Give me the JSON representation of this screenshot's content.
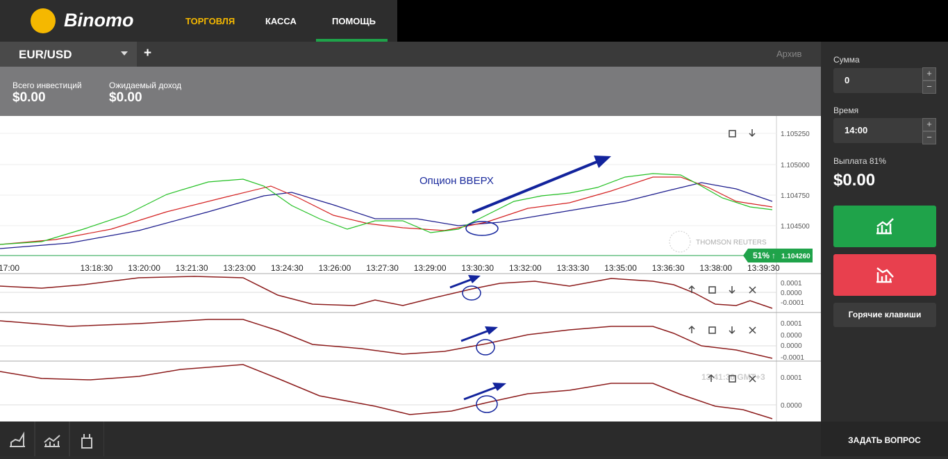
{
  "header": {
    "logo": "Binomo",
    "nav": [
      "ТОРГОВЛЯ",
      "КАССА",
      "ПОМОЩЬ"
    ]
  },
  "tabs": {
    "asset": "EUR/USD",
    "add": "+",
    "archive": "Архив"
  },
  "info": {
    "invested_label": "Всего инвестиций",
    "invested": "$0.00",
    "expected_label": "Ожидаемый доход",
    "expected": "$0.00"
  },
  "chart": {
    "price_ticks": [
      "1.105250",
      "1.105000",
      "1.104750",
      "1.104500"
    ],
    "time_ticks": [
      "17:00",
      "13:18:30",
      "13:20:00",
      "13:21:30",
      "13:23:00",
      "13:24:30",
      "13:26:00",
      "13:27:30",
      "13:29:00",
      "13:30:30",
      "13:32:00",
      "13:33:30",
      "13:35:00",
      "13:36:30",
      "13:38:00",
      "13:39:30"
    ],
    "annotation": "Опцион ВВЕРХ",
    "watermark": "THOMSON REUTERS",
    "badge_percent": "51%",
    "badge_arrow": "↑",
    "badge_price": "1.104260",
    "clock": "13:41:30 GMT+3",
    "panel1_ticks": [
      "0.0001",
      "0.0000",
      "-0.0001"
    ],
    "panel2_ticks": [
      "0.0001",
      "0.0000",
      "0.0000",
      "-0.0001"
    ],
    "panel3_ticks": [
      "0.0001",
      "0.0000"
    ]
  },
  "sidebar": {
    "amount_label": "Сумма",
    "amount": "0",
    "time_label": "Время",
    "time": "14:00",
    "payout_label": "Выплата 81%",
    "payout": "$0.00",
    "hotkeys": "Горячие клавиши"
  },
  "footer": {
    "ask": "ЗАДАТЬ ВОПРОС"
  }
}
